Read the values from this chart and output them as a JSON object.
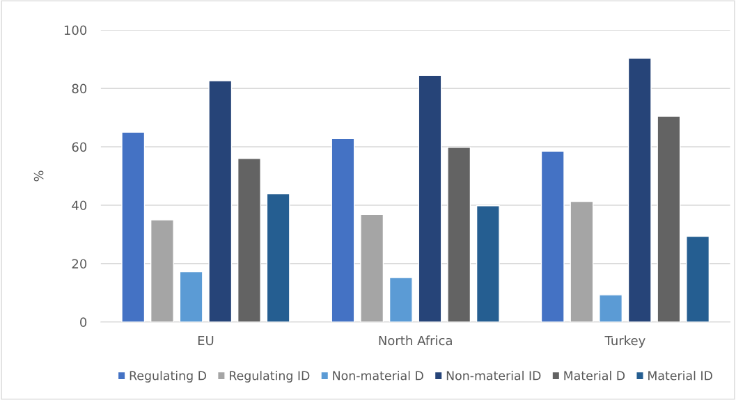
{
  "chart_data": {
    "type": "bar",
    "ylabel": "%",
    "categories": [
      "EU",
      "North Africa",
      "Turkey"
    ],
    "series": [
      {
        "name": "Regulating D",
        "color": "#4472c4",
        "values": [
          65,
          62.8,
          58.5
        ]
      },
      {
        "name": "Regulating ID",
        "color": "#a5a5a5",
        "values": [
          35,
          36.8,
          41.3
        ]
      },
      {
        "name": "Non-material D",
        "color": "#5b9bd5",
        "values": [
          17.2,
          15.2,
          9.3
        ]
      },
      {
        "name": "Non-material ID",
        "color": "#264478",
        "values": [
          82.6,
          84.5,
          90.3
        ]
      },
      {
        "name": "Material D",
        "color": "#636363",
        "values": [
          56,
          59.8,
          70.5
        ]
      },
      {
        "name": "Material ID",
        "color": "#255e91",
        "values": [
          43.9,
          39.8,
          29.3
        ]
      }
    ],
    "ylim": [
      0,
      100
    ],
    "yticks": [
      0,
      20,
      40,
      60,
      80,
      100
    ],
    "grid": "y",
    "legend": "bottom"
  }
}
